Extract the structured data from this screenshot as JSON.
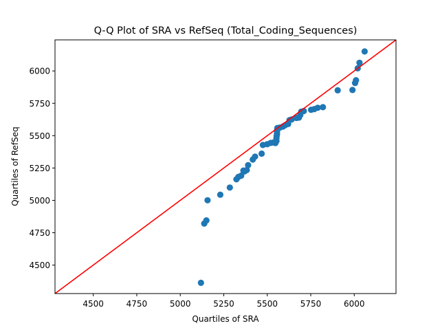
{
  "chart_data": {
    "type": "scatter",
    "title": "Q-Q Plot of SRA vs RefSeq (Total_Coding_Sequences)",
    "xlabel": "Quartiles of SRA",
    "ylabel": "Quartiles of RefSeq",
    "xlim": [
      4280,
      6240
    ],
    "ylim": [
      4280,
      6240
    ],
    "xticks": [
      4500,
      4750,
      5000,
      5250,
      5500,
      5750,
      6000
    ],
    "yticks": [
      4500,
      4750,
      5000,
      5250,
      5500,
      5750,
      6000
    ],
    "grid": false,
    "legend": "none",
    "point_color": "#1f77b4",
    "reference_line": {
      "color": "#ff0000",
      "points": [
        [
          4280,
          4280
        ],
        [
          6240,
          6240
        ]
      ]
    },
    "points": [
      [
        5119,
        4363
      ],
      [
        5138,
        4821
      ],
      [
        5150,
        4845
      ],
      [
        5157,
        5001
      ],
      [
        5230,
        5044
      ],
      [
        5285,
        5099
      ],
      [
        5323,
        5163
      ],
      [
        5334,
        5181
      ],
      [
        5350,
        5191
      ],
      [
        5363,
        5230
      ],
      [
        5370,
        5224
      ],
      [
        5382,
        5234
      ],
      [
        5390,
        5272
      ],
      [
        5417,
        5316
      ],
      [
        5430,
        5338
      ],
      [
        5468,
        5361
      ],
      [
        5475,
        5428
      ],
      [
        5500,
        5434
      ],
      [
        5520,
        5444
      ],
      [
        5535,
        5447
      ],
      [
        5547,
        5443
      ],
      [
        5553,
        5459
      ],
      [
        5553,
        5479
      ],
      [
        5554,
        5497
      ],
      [
        5556,
        5512
      ],
      [
        5556,
        5530
      ],
      [
        5557,
        5545
      ],
      [
        5558,
        5559
      ],
      [
        5572,
        5562
      ],
      [
        5590,
        5570
      ],
      [
        5602,
        5580
      ],
      [
        5620,
        5590
      ],
      [
        5628,
        5620
      ],
      [
        5640,
        5625
      ],
      [
        5668,
        5637
      ],
      [
        5682,
        5640
      ],
      [
        5690,
        5660
      ],
      [
        5695,
        5685
      ],
      [
        5710,
        5690
      ],
      [
        5752,
        5700
      ],
      [
        5770,
        5705
      ],
      [
        5790,
        5715
      ],
      [
        5820,
        5720
      ],
      [
        5905,
        5850
      ],
      [
        5990,
        5853
      ],
      [
        6005,
        5907
      ],
      [
        6010,
        5928
      ],
      [
        6020,
        6020
      ],
      [
        6030,
        6063
      ],
      [
        6060,
        6150
      ]
    ]
  }
}
